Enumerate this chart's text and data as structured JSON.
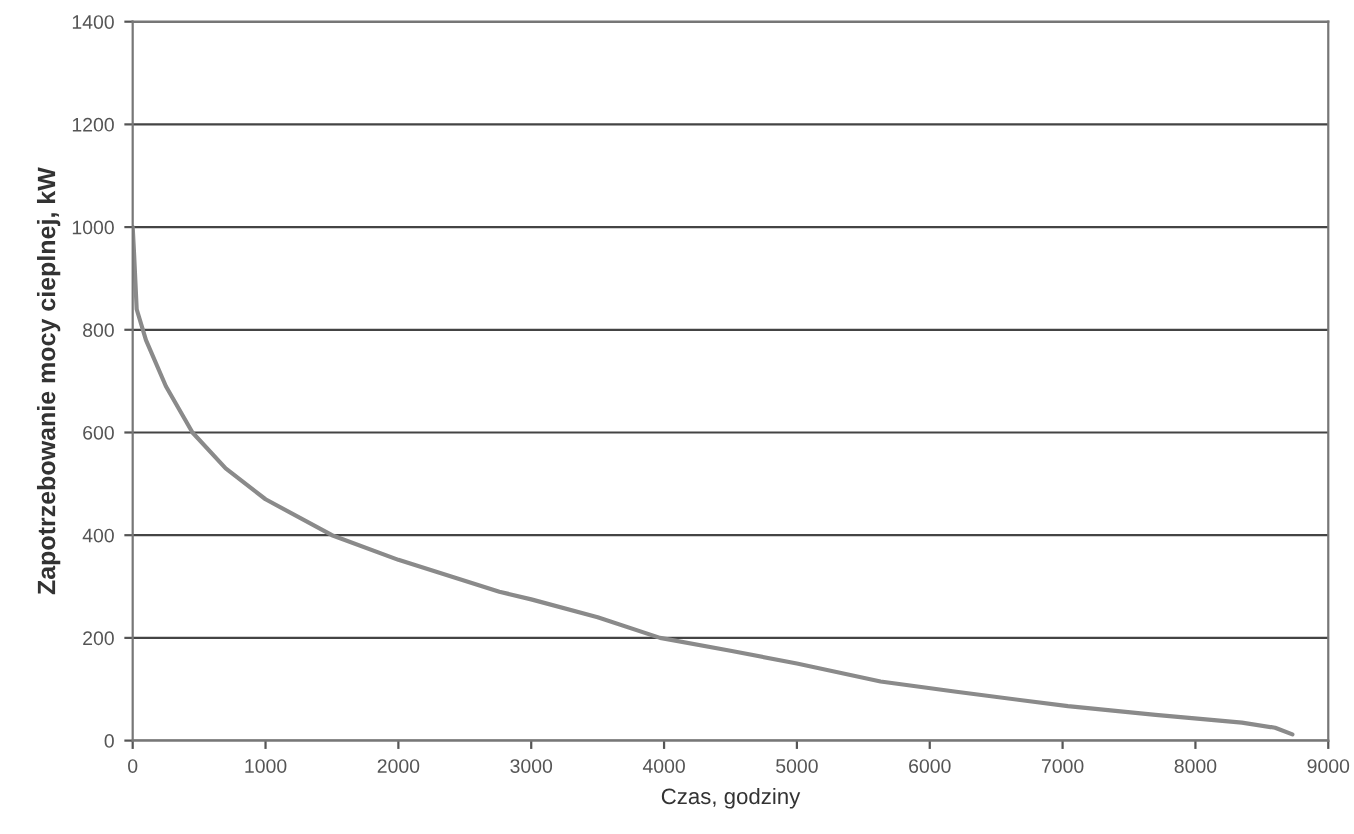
{
  "chart_data": {
    "type": "line",
    "xlabel": "Czas, godziny",
    "ylabel": "Zapotrzebowanie mocy cieplnej, kW",
    "series": [
      {
        "color": "#8a8a8a",
        "x": [
          0,
          10,
          30,
          100,
          250,
          450,
          700,
          1000,
          1500,
          2000,
          2760,
          3000,
          3500,
          3970,
          4500,
          5000,
          5630,
          6200,
          7040,
          7700,
          8350,
          8600,
          8730
        ],
        "values": [
          1000,
          950,
          840,
          780,
          690,
          600,
          530,
          470,
          400,
          352,
          290,
          275,
          240,
          200,
          175,
          150,
          115,
          95,
          67,
          50,
          35,
          25,
          12
        ]
      }
    ],
    "xlim": [
      0,
      9000
    ],
    "xticks": [
      0,
      1000,
      2000,
      3000,
      4000,
      5000,
      6000,
      7000,
      8000,
      9000
    ],
    "ylim": [
      0,
      1400
    ],
    "yticks": [
      0,
      200,
      400,
      600,
      800,
      1000,
      1200,
      1400
    ],
    "grid": "y",
    "marker": "none",
    "line_style": "solid"
  }
}
